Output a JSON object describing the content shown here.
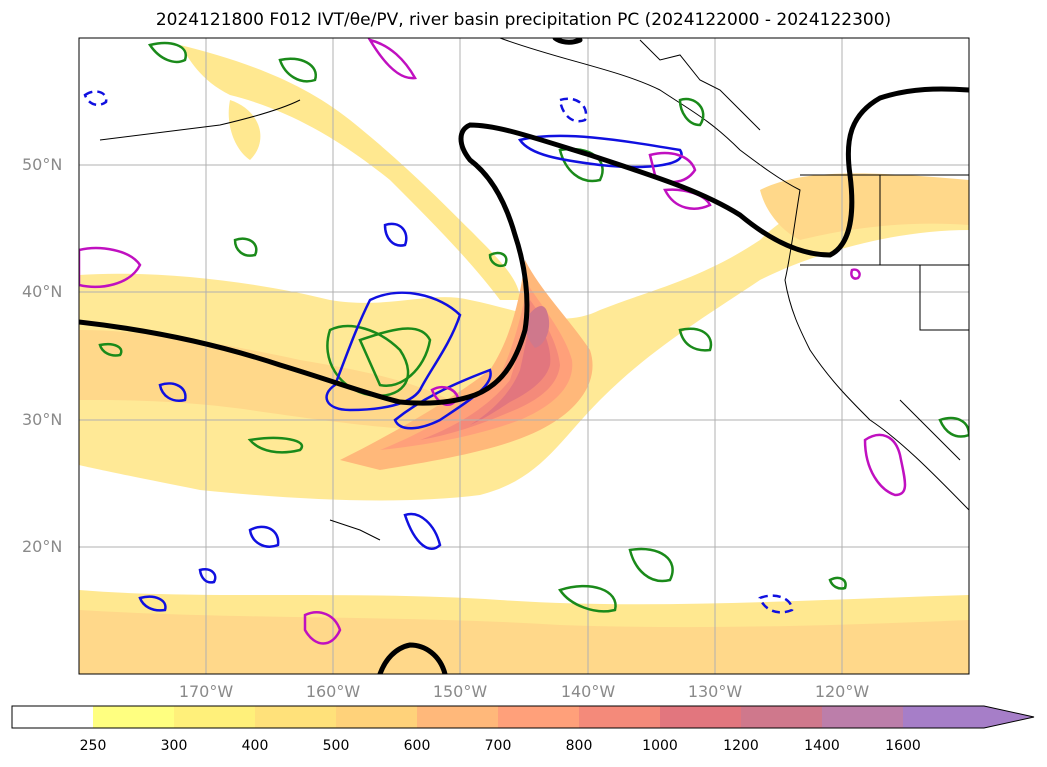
{
  "title": "2024121800 F012 IVT/θe/PV, river basin precipitation PC (2024122000 - 2024122300)",
  "map": {
    "lat_labels": [
      "50°N",
      "40°N",
      "30°N",
      "20°N"
    ],
    "lon_labels": [
      "170°W",
      "160°W",
      "150°W",
      "140°W",
      "130°W",
      "120°W"
    ]
  },
  "colorbar": {
    "levels": [
      "250",
      "300",
      "400",
      "500",
      "600",
      "700",
      "800",
      "1000",
      "1200",
      "1400",
      "1600"
    ],
    "colors": [
      "#ffffff",
      "#ffff80",
      "#fff07a",
      "#ffe17a",
      "#ffd27a",
      "#ffb87a",
      "#ffa07a",
      "#f48a7a",
      "#e2767e",
      "#cf788c",
      "#bc7eaa",
      "#a67ec8"
    ],
    "extend": "max"
  }
}
